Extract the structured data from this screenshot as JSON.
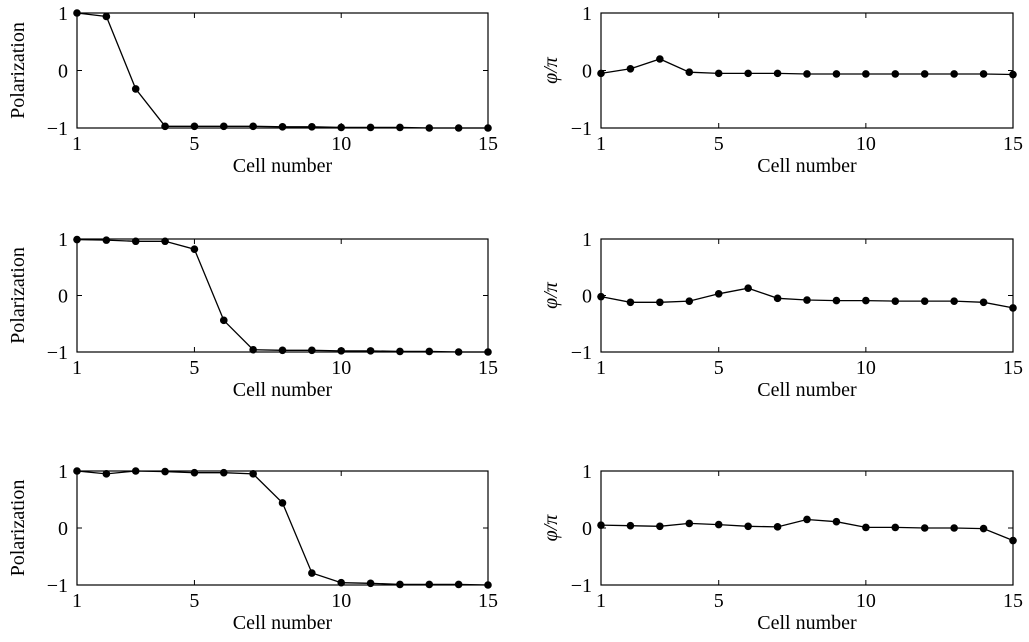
{
  "chart_data": [
    {
      "type": "line",
      "panel": "row1-left",
      "xlabel": "Cell number",
      "ylabel": "Polarization",
      "xlim": [
        1,
        15
      ],
      "ylim": [
        -1,
        1
      ],
      "xticks": [
        "1",
        "5",
        "10",
        "15"
      ],
      "yticks": [
        "−1",
        "0",
        "1"
      ],
      "grid": false,
      "x": [
        1,
        2,
        3,
        4,
        5,
        6,
        7,
        8,
        9,
        10,
        11,
        12,
        13,
        14,
        15
      ],
      "values": [
        1.0,
        0.94,
        -0.32,
        -0.97,
        -0.97,
        -0.97,
        -0.97,
        -0.98,
        -0.98,
        -0.99,
        -0.99,
        -0.99,
        -1.0,
        -1.0,
        -1.0
      ]
    },
    {
      "type": "line",
      "panel": "row1-right",
      "xlabel": "Cell number",
      "ylabel": "φ/π",
      "xlim": [
        1,
        15
      ],
      "ylim": [
        -1,
        1
      ],
      "xticks": [
        "1",
        "5",
        "10",
        "15"
      ],
      "yticks": [
        "−1",
        "0",
        "1"
      ],
      "grid": false,
      "x": [
        1,
        2,
        3,
        4,
        5,
        6,
        7,
        8,
        9,
        10,
        11,
        12,
        13,
        14,
        15
      ],
      "values": [
        -0.05,
        0.03,
        0.2,
        -0.03,
        -0.05,
        -0.05,
        -0.05,
        -0.06,
        -0.06,
        -0.06,
        -0.06,
        -0.06,
        -0.06,
        -0.06,
        -0.07
      ]
    },
    {
      "type": "line",
      "panel": "row2-left",
      "xlabel": "Cell number",
      "ylabel": "Polarization",
      "xlim": [
        1,
        15
      ],
      "ylim": [
        -1,
        1
      ],
      "xticks": [
        "1",
        "5",
        "10",
        "15"
      ],
      "yticks": [
        "−1",
        "0",
        "1"
      ],
      "grid": false,
      "x": [
        1,
        2,
        3,
        4,
        5,
        6,
        7,
        8,
        9,
        10,
        11,
        12,
        13,
        14,
        15
      ],
      "values": [
        0.99,
        0.98,
        0.96,
        0.96,
        0.82,
        -0.44,
        -0.96,
        -0.97,
        -0.97,
        -0.98,
        -0.98,
        -0.99,
        -0.99,
        -1.0,
        -1.0
      ]
    },
    {
      "type": "line",
      "panel": "row2-right",
      "xlabel": "Cell number",
      "ylabel": "φ/π",
      "xlim": [
        1,
        15
      ],
      "ylim": [
        -1,
        1
      ],
      "xticks": [
        "1",
        "5",
        "10",
        "15"
      ],
      "yticks": [
        "−1",
        "0",
        "1"
      ],
      "grid": false,
      "x": [
        1,
        2,
        3,
        4,
        5,
        6,
        7,
        8,
        9,
        10,
        11,
        12,
        13,
        14,
        15
      ],
      "values": [
        -0.02,
        -0.12,
        -0.12,
        -0.1,
        0.03,
        0.13,
        -0.05,
        -0.08,
        -0.09,
        -0.09,
        -0.1,
        -0.1,
        -0.1,
        -0.12,
        -0.22
      ]
    },
    {
      "type": "line",
      "panel": "row3-left",
      "xlabel": "Cell number",
      "ylabel": "Polarization",
      "xlim": [
        1,
        15
      ],
      "ylim": [
        -1,
        1
      ],
      "xticks": [
        "1",
        "5",
        "10",
        "15"
      ],
      "yticks": [
        "−1",
        "0",
        "1"
      ],
      "grid": false,
      "x": [
        1,
        2,
        3,
        4,
        5,
        6,
        7,
        8,
        9,
        10,
        11,
        12,
        13,
        14,
        15
      ],
      "values": [
        1.0,
        0.95,
        1.0,
        0.99,
        0.97,
        0.97,
        0.95,
        0.44,
        -0.79,
        -0.96,
        -0.97,
        -0.99,
        -0.99,
        -0.99,
        -1.0
      ]
    },
    {
      "type": "line",
      "panel": "row3-right",
      "xlabel": "Cell number",
      "ylabel": "φ/π",
      "xlim": [
        1,
        15
      ],
      "ylim": [
        -1,
        1
      ],
      "xticks": [
        "1",
        "5",
        "10",
        "15"
      ],
      "yticks": [
        "−1",
        "0",
        "1"
      ],
      "grid": false,
      "x": [
        1,
        2,
        3,
        4,
        5,
        6,
        7,
        8,
        9,
        10,
        11,
        12,
        13,
        14,
        15
      ],
      "values": [
        0.05,
        0.04,
        0.03,
        0.08,
        0.06,
        0.03,
        0.02,
        0.15,
        0.11,
        0.01,
        0.01,
        0.0,
        0.0,
        -0.01,
        -0.22
      ]
    }
  ]
}
